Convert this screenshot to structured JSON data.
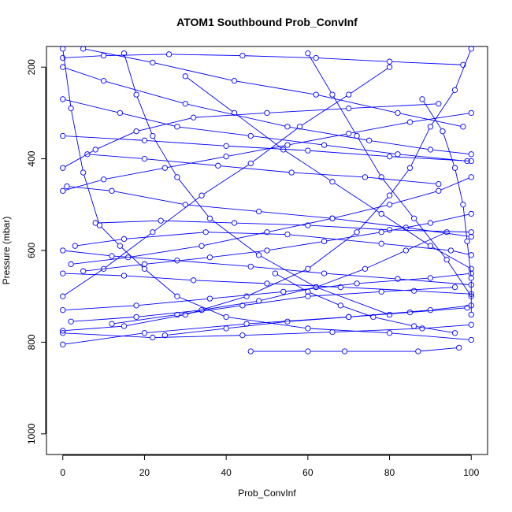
{
  "chart_data": {
    "type": "scatter",
    "title": "ATOM1 Southbound Prob_ConvInf",
    "xlabel": "Prob_ConvInf",
    "ylabel": "Pressure (mbar)",
    "xlim": [
      -4,
      104
    ],
    "ylim": [
      1045,
      155
    ],
    "y_inverted": true,
    "x_ticks": [
      0,
      20,
      40,
      60,
      80,
      100
    ],
    "y_ticks": [
      200,
      400,
      600,
      800,
      1000
    ],
    "x_tick_labels": [
      "0",
      "20",
      "40",
      "60",
      "80",
      "100"
    ],
    "y_tick_labels": [
      "200",
      "400",
      "600",
      "800",
      "1000"
    ],
    "grid": false,
    "legend": "none",
    "marker": "open-circle",
    "series_color": "#0000ff",
    "series": [
      {
        "points": [
          [
            0,
            160
          ],
          [
            2,
            290
          ],
          [
            5,
            430
          ],
          [
            9,
            545
          ],
          [
            14,
            590
          ],
          [
            20,
            640
          ],
          [
            28,
            700
          ],
          [
            40,
            745
          ],
          [
            60,
            770
          ],
          [
            80,
            780
          ],
          [
            100,
            795
          ]
        ]
      },
      {
        "points": [
          [
            100,
            160
          ],
          [
            96,
            250
          ],
          [
            90,
            330
          ],
          [
            85,
            420
          ],
          [
            80,
            480
          ],
          [
            72,
            560
          ],
          [
            60,
            640
          ],
          [
            45,
            700
          ],
          [
            30,
            740
          ],
          [
            15,
            765
          ],
          [
            0,
            775
          ]
        ]
      },
      {
        "points": [
          [
            0,
            200
          ],
          [
            10,
            230
          ],
          [
            30,
            280
          ],
          [
            55,
            330
          ],
          [
            75,
            360
          ],
          [
            90,
            380
          ],
          [
            100,
            390
          ]
        ]
      },
      {
        "points": [
          [
            0,
            805
          ],
          [
            20,
            780
          ],
          [
            45,
            760
          ],
          [
            70,
            745
          ],
          [
            90,
            730
          ],
          [
            100,
            720
          ]
        ]
      },
      {
        "points": [
          [
            46,
            820
          ],
          [
            60,
            820
          ],
          [
            69,
            820
          ],
          [
            87,
            820
          ],
          [
            97,
            812
          ]
        ]
      },
      {
        "points": [
          [
            3,
            590
          ],
          [
            15,
            575
          ],
          [
            35,
            560
          ],
          [
            55,
            565
          ],
          [
            78,
            585
          ],
          [
            95,
            600
          ],
          [
            100,
            610
          ]
        ]
      },
      {
        "points": [
          [
            1,
            460
          ],
          [
            12,
            470
          ],
          [
            30,
            500
          ],
          [
            48,
            515
          ],
          [
            66,
            530
          ],
          [
            84,
            550
          ],
          [
            100,
            570
          ]
        ]
      },
      {
        "points": [
          [
            5,
            160
          ],
          [
            22,
            190
          ],
          [
            42,
            230
          ],
          [
            62,
            260
          ],
          [
            82,
            300
          ],
          [
            98,
            330
          ]
        ]
      },
      {
        "points": [
          [
            0,
            730
          ],
          [
            18,
            720
          ],
          [
            36,
            705
          ],
          [
            54,
            690
          ],
          [
            72,
            672
          ],
          [
            90,
            660
          ],
          [
            100,
            650
          ]
        ]
      },
      {
        "points": [
          [
            12,
            760
          ],
          [
            28,
            740
          ],
          [
            44,
            720
          ],
          [
            60,
            700
          ],
          [
            78,
            690
          ],
          [
            96,
            680
          ]
        ]
      },
      {
        "points": [
          [
            0,
            420
          ],
          [
            8,
            380
          ],
          [
            18,
            340
          ],
          [
            32,
            310
          ],
          [
            50,
            300
          ],
          [
            70,
            290
          ],
          [
            92,
            280
          ]
        ]
      },
      {
        "points": [
          [
            100,
            440
          ],
          [
            92,
            470
          ],
          [
            80,
            500
          ],
          [
            66,
            530
          ],
          [
            50,
            560
          ],
          [
            34,
            590
          ],
          [
            16,
            615
          ],
          [
            2,
            630
          ]
        ]
      },
      {
        "points": [
          [
            0,
            650
          ],
          [
            15,
            655
          ],
          [
            32,
            665
          ],
          [
            50,
            672
          ],
          [
            68,
            680
          ],
          [
            86,
            688
          ],
          [
            100,
            695
          ]
        ]
      },
      {
        "points": [
          [
            25,
            785
          ],
          [
            40,
            770
          ],
          [
            55,
            755
          ],
          [
            70,
            745
          ],
          [
            85,
            735
          ],
          [
            99,
            725
          ]
        ]
      },
      {
        "points": [
          [
            60,
            170
          ],
          [
            66,
            260
          ],
          [
            72,
            350
          ],
          [
            78,
            440
          ],
          [
            86,
            530
          ],
          [
            94,
            620
          ],
          [
            100,
            700
          ]
        ]
      },
      {
        "points": [
          [
            6,
            390
          ],
          [
            20,
            400
          ],
          [
            38,
            415
          ],
          [
            56,
            430
          ],
          [
            74,
            440
          ],
          [
            92,
            455
          ]
        ]
      },
      {
        "points": [
          [
            0,
            270
          ],
          [
            14,
            300
          ],
          [
            28,
            330
          ],
          [
            46,
            350
          ],
          [
            64,
            370
          ],
          [
            82,
            390
          ],
          [
            99,
            405
          ]
        ]
      },
      {
        "points": [
          [
            8,
            540
          ],
          [
            24,
            535
          ],
          [
            42,
            540
          ],
          [
            60,
            545
          ],
          [
            80,
            555
          ],
          [
            100,
            560
          ]
        ]
      },
      {
        "points": [
          [
            30,
            220
          ],
          [
            42,
            300
          ],
          [
            54,
            380
          ],
          [
            66,
            450
          ],
          [
            78,
            520
          ],
          [
            90,
            590
          ],
          [
            100,
            640
          ]
        ]
      },
      {
        "points": [
          [
            0,
            780
          ],
          [
            22,
            790
          ],
          [
            44,
            785
          ],
          [
            66,
            778
          ],
          [
            88,
            770
          ],
          [
            100,
            762
          ]
        ]
      },
      {
        "points": [
          [
            80,
            200
          ],
          [
            70,
            260
          ],
          [
            58,
            330
          ],
          [
            46,
            410
          ],
          [
            34,
            480
          ],
          [
            22,
            560
          ],
          [
            10,
            640
          ],
          [
            0,
            700
          ]
        ]
      },
      {
        "points": [
          [
            100,
            300
          ],
          [
            85,
            320
          ],
          [
            70,
            345
          ],
          [
            55,
            370
          ],
          [
            40,
            395
          ],
          [
            25,
            420
          ],
          [
            10,
            445
          ],
          [
            0,
            470
          ]
        ]
      },
      {
        "points": [
          [
            94,
            560
          ],
          [
            84,
            600
          ],
          [
            74,
            640
          ],
          [
            62,
            680
          ],
          [
            48,
            710
          ],
          [
            34,
            730
          ],
          [
            18,
            745
          ],
          [
            2,
            755
          ]
        ]
      },
      {
        "points": [
          [
            0,
            350
          ],
          [
            20,
            360
          ],
          [
            40,
            372
          ],
          [
            60,
            382
          ],
          [
            80,
            395
          ],
          [
            100,
            405
          ]
        ]
      },
      {
        "points": [
          [
            15,
            170
          ],
          [
            18,
            260
          ],
          [
            22,
            350
          ],
          [
            28,
            440
          ],
          [
            36,
            530
          ],
          [
            48,
            610
          ],
          [
            62,
            680
          ],
          [
            80,
            740
          ]
        ]
      },
      {
        "points": [
          [
            100,
            520
          ],
          [
            90,
            540
          ],
          [
            78,
            560
          ],
          [
            64,
            580
          ],
          [
            50,
            600
          ],
          [
            36,
            615
          ],
          [
            20,
            630
          ],
          [
            5,
            645
          ]
        ]
      },
      {
        "points": [
          [
            0,
            180
          ],
          [
            10,
            175
          ],
          [
            26,
            172
          ],
          [
            44,
            175
          ],
          [
            62,
            180
          ],
          [
            80,
            188
          ],
          [
            98,
            195
          ]
        ]
      },
      {
        "points": [
          [
            88,
            270
          ],
          [
            93,
            340
          ],
          [
            96,
            420
          ],
          [
            98,
            500
          ],
          [
            99,
            580
          ],
          [
            100,
            660
          ],
          [
            100,
            740
          ]
        ]
      },
      {
        "points": [
          [
            0,
            600
          ],
          [
            12,
            612
          ],
          [
            28,
            622
          ],
          [
            46,
            635
          ],
          [
            64,
            650
          ],
          [
            82,
            662
          ],
          [
            100,
            675
          ]
        ]
      },
      {
        "points": [
          [
            52,
            650
          ],
          [
            60,
            690
          ],
          [
            68,
            720
          ],
          [
            76,
            745
          ],
          [
            86,
            765
          ],
          [
            96,
            780
          ]
        ]
      }
    ]
  }
}
